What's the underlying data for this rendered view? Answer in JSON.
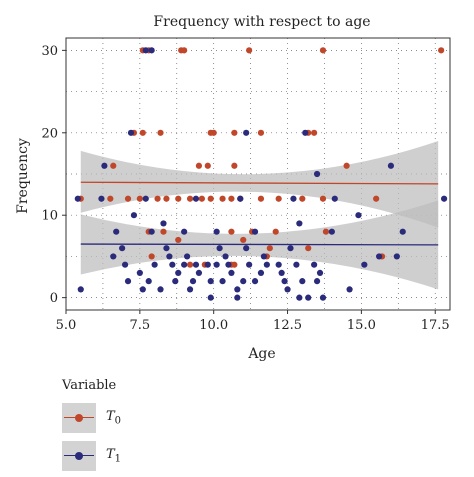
{
  "chart_data": {
    "type": "scatter",
    "title": "Frequency with respect to age",
    "xlabel": "Age",
    "ylabel": "Frequency",
    "xlim": [
      5.0,
      18.0
    ],
    "ylim": [
      -1.5,
      31.5
    ],
    "xticks": [
      5.0,
      7.5,
      10.0,
      12.5,
      15.0,
      17.5
    ],
    "xtick_labels": [
      "5.0",
      "7.5",
      "10.0",
      "12.5",
      "15.0",
      "17.5"
    ],
    "yticks": [
      0,
      10,
      20,
      30
    ],
    "ytick_labels": [
      "0",
      "10",
      "20",
      "30"
    ],
    "grid": "dotted",
    "legend_placement": "bottom-left",
    "legend_title": "Variable",
    "series": [
      {
        "name": "T",
        "name_sub": "0",
        "color": "#c0472a",
        "fit": {
          "y_start": 14.0,
          "y_end": 13.8,
          "band_start": [
            10.3,
            17.8
          ],
          "band_mid": [
            12.8,
            15.0
          ],
          "band_end": [
            8.5,
            19.0
          ]
        },
        "points": [
          [
            7.6,
            30
          ],
          [
            7.8,
            30
          ],
          [
            8.9,
            30
          ],
          [
            9.0,
            30
          ],
          [
            11.2,
            30
          ],
          [
            13.7,
            30
          ],
          [
            17.7,
            30
          ],
          [
            7.3,
            20
          ],
          [
            7.6,
            20
          ],
          [
            8.2,
            20
          ],
          [
            9.9,
            20
          ],
          [
            10.0,
            20
          ],
          [
            10.7,
            20
          ],
          [
            11.6,
            20
          ],
          [
            13.2,
            20
          ],
          [
            13.4,
            20
          ],
          [
            6.6,
            16
          ],
          [
            9.5,
            16
          ],
          [
            9.8,
            16
          ],
          [
            10.7,
            16
          ],
          [
            14.5,
            16
          ],
          [
            5.5,
            12
          ],
          [
            6.5,
            12
          ],
          [
            7.1,
            12
          ],
          [
            7.5,
            12
          ],
          [
            8.1,
            12
          ],
          [
            8.4,
            12
          ],
          [
            8.8,
            12
          ],
          [
            9.2,
            12
          ],
          [
            9.6,
            12
          ],
          [
            9.9,
            12
          ],
          [
            10.3,
            12
          ],
          [
            10.6,
            12
          ],
          [
            10.9,
            12
          ],
          [
            11.6,
            12
          ],
          [
            12.2,
            12
          ],
          [
            13.0,
            12
          ],
          [
            13.7,
            12
          ],
          [
            15.5,
            12
          ],
          [
            7.8,
            8
          ],
          [
            8.3,
            8
          ],
          [
            10.6,
            8
          ],
          [
            11.3,
            8
          ],
          [
            12.1,
            8
          ],
          [
            13.8,
            8
          ],
          [
            8.8,
            7
          ],
          [
            11.0,
            7
          ],
          [
            11.9,
            6
          ],
          [
            13.2,
            6
          ],
          [
            7.9,
            5
          ],
          [
            11.8,
            5
          ],
          [
            15.7,
            5
          ],
          [
            9.2,
            4
          ],
          [
            9.7,
            4
          ],
          [
            10.6,
            4
          ],
          [
            10.7,
            4
          ]
        ]
      },
      {
        "name": "T",
        "name_sub": "1",
        "color": "#2b2b7c",
        "fit": {
          "y_start": 6.5,
          "y_end": 6.4,
          "band_start": [
            2.8,
            10.1
          ],
          "band_mid": [
            5.0,
            7.8
          ],
          "band_end": [
            1.0,
            11.8
          ]
        },
        "points": [
          [
            7.7,
            30
          ],
          [
            7.9,
            30
          ],
          [
            7.2,
            20
          ],
          [
            11.1,
            20
          ],
          [
            13.1,
            20
          ],
          [
            6.3,
            16
          ],
          [
            16.0,
            16
          ],
          [
            13.5,
            15
          ],
          [
            5.4,
            12
          ],
          [
            6.2,
            12
          ],
          [
            7.7,
            12
          ],
          [
            9.4,
            12
          ],
          [
            10.9,
            12
          ],
          [
            12.7,
            12
          ],
          [
            14.1,
            12
          ],
          [
            17.8,
            12
          ],
          [
            7.3,
            10
          ],
          [
            14.9,
            10
          ],
          [
            8.3,
            9
          ],
          [
            12.9,
            9
          ],
          [
            6.7,
            8
          ],
          [
            7.9,
            8
          ],
          [
            9.0,
            8
          ],
          [
            10.1,
            8
          ],
          [
            11.4,
            8
          ],
          [
            14.0,
            8
          ],
          [
            16.4,
            8
          ],
          [
            6.9,
            6
          ],
          [
            8.4,
            6
          ],
          [
            10.2,
            6
          ],
          [
            11.1,
            6
          ],
          [
            12.6,
            6
          ],
          [
            6.6,
            5
          ],
          [
            8.5,
            5
          ],
          [
            9.1,
            5
          ],
          [
            10.4,
            5
          ],
          [
            11.7,
            5
          ],
          [
            15.6,
            5
          ],
          [
            16.2,
            5
          ],
          [
            7.0,
            4
          ],
          [
            8.0,
            4
          ],
          [
            8.6,
            4
          ],
          [
            9.0,
            4
          ],
          [
            9.4,
            4
          ],
          [
            9.8,
            4
          ],
          [
            10.1,
            4
          ],
          [
            10.5,
            4
          ],
          [
            11.2,
            4
          ],
          [
            11.8,
            4
          ],
          [
            12.2,
            4
          ],
          [
            12.8,
            4
          ],
          [
            13.4,
            4
          ],
          [
            15.1,
            4
          ],
          [
            7.5,
            3
          ],
          [
            8.8,
            3
          ],
          [
            9.5,
            3
          ],
          [
            10.6,
            3
          ],
          [
            11.6,
            3
          ],
          [
            12.3,
            3
          ],
          [
            13.6,
            3
          ],
          [
            7.1,
            2
          ],
          [
            7.8,
            2
          ],
          [
            8.7,
            2
          ],
          [
            9.3,
            2
          ],
          [
            9.9,
            2
          ],
          [
            10.3,
            2
          ],
          [
            11.0,
            2
          ],
          [
            11.4,
            2
          ],
          [
            12.4,
            2
          ],
          [
            13.0,
            2
          ],
          [
            13.5,
            2
          ],
          [
            7.6,
            1
          ],
          [
            8.2,
            1
          ],
          [
            9.2,
            1
          ],
          [
            10.8,
            1
          ],
          [
            12.5,
            1
          ],
          [
            14.6,
            1
          ],
          [
            5.5,
            1
          ],
          [
            9.9,
            0
          ],
          [
            10.8,
            0
          ],
          [
            12.9,
            0
          ],
          [
            13.2,
            0
          ],
          [
            13.7,
            0
          ]
        ]
      }
    ]
  }
}
